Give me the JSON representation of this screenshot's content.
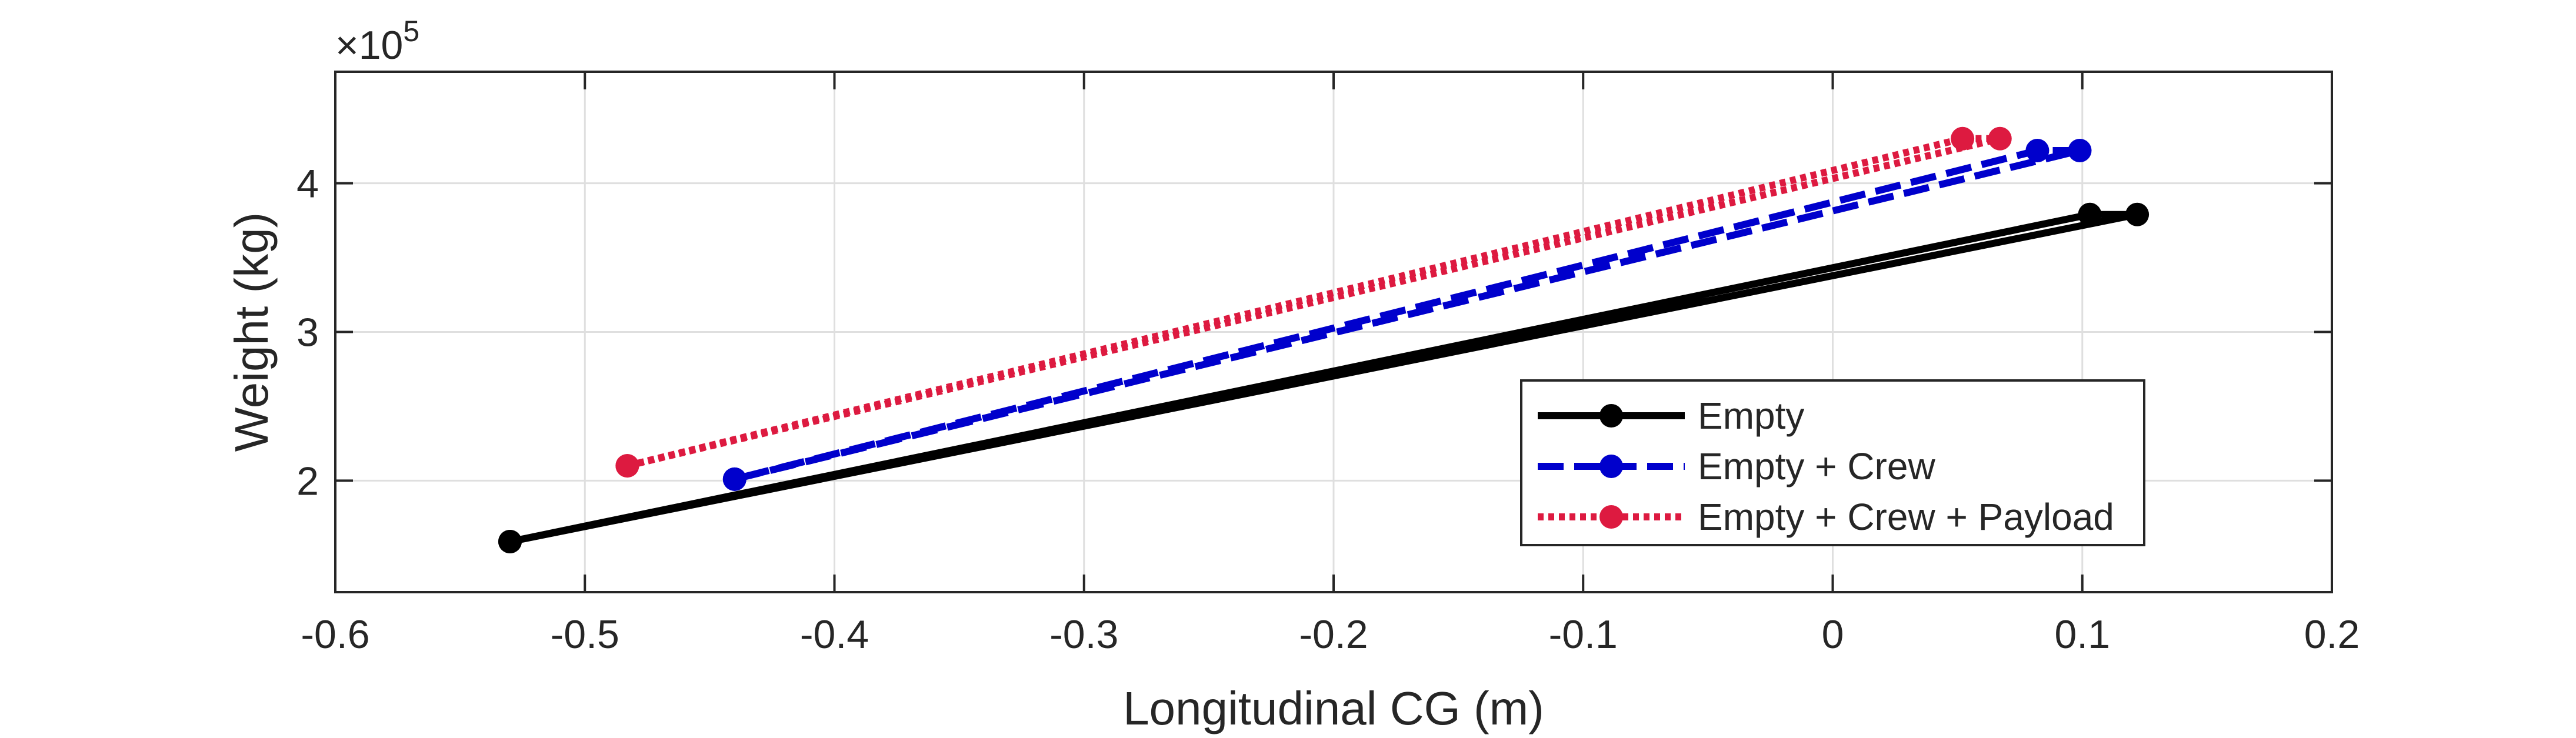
{
  "chart_data": {
    "type": "line",
    "title": "",
    "xlabel": "Longitudinal CG (m)",
    "ylabel": "Weight (kg)",
    "y_exponent_label": "×10",
    "y_exponent_power": "5",
    "y_scale_factor": 100000,
    "xlim": [
      -0.6,
      0.2
    ],
    "ylim": [
      125000,
      475000
    ],
    "xticks": [
      -0.6,
      -0.5,
      -0.4,
      -0.3,
      -0.2,
      -0.1,
      0,
      0.1,
      0.2
    ],
    "xtick_labels": [
      "-0.6",
      "-0.5",
      "-0.4",
      "-0.3",
      "-0.2",
      "-0.1",
      "0",
      "0.1",
      "0.2"
    ],
    "yticks": [
      200000,
      300000,
      400000
    ],
    "ytick_labels": [
      "2",
      "3",
      "4"
    ],
    "grid": true,
    "legend_position": "bottom-right",
    "series": [
      {
        "name": "Empty",
        "color": "#000000",
        "line_style": "solid",
        "marker": "circle",
        "points": [
          {
            "x": -0.53,
            "y": 159000
          },
          {
            "x": 0.122,
            "y": 379000
          },
          {
            "x": 0.103,
            "y": 379000
          },
          {
            "x": -0.53,
            "y": 159000
          }
        ]
      },
      {
        "name": "Empty + Crew",
        "color": "#0000cc",
        "line_style": "dashed",
        "marker": "circle",
        "points": [
          {
            "x": -0.44,
            "y": 201000
          },
          {
            "x": 0.099,
            "y": 422000
          },
          {
            "x": 0.082,
            "y": 422000
          },
          {
            "x": -0.44,
            "y": 201000
          }
        ]
      },
      {
        "name": "Empty + Crew + Payload",
        "color": "#dd1a40",
        "line_style": "dotted",
        "marker": "circle",
        "points": [
          {
            "x": -0.483,
            "y": 210000
          },
          {
            "x": 0.067,
            "y": 430000
          },
          {
            "x": 0.052,
            "y": 430000
          },
          {
            "x": -0.483,
            "y": 210000
          }
        ]
      }
    ]
  }
}
